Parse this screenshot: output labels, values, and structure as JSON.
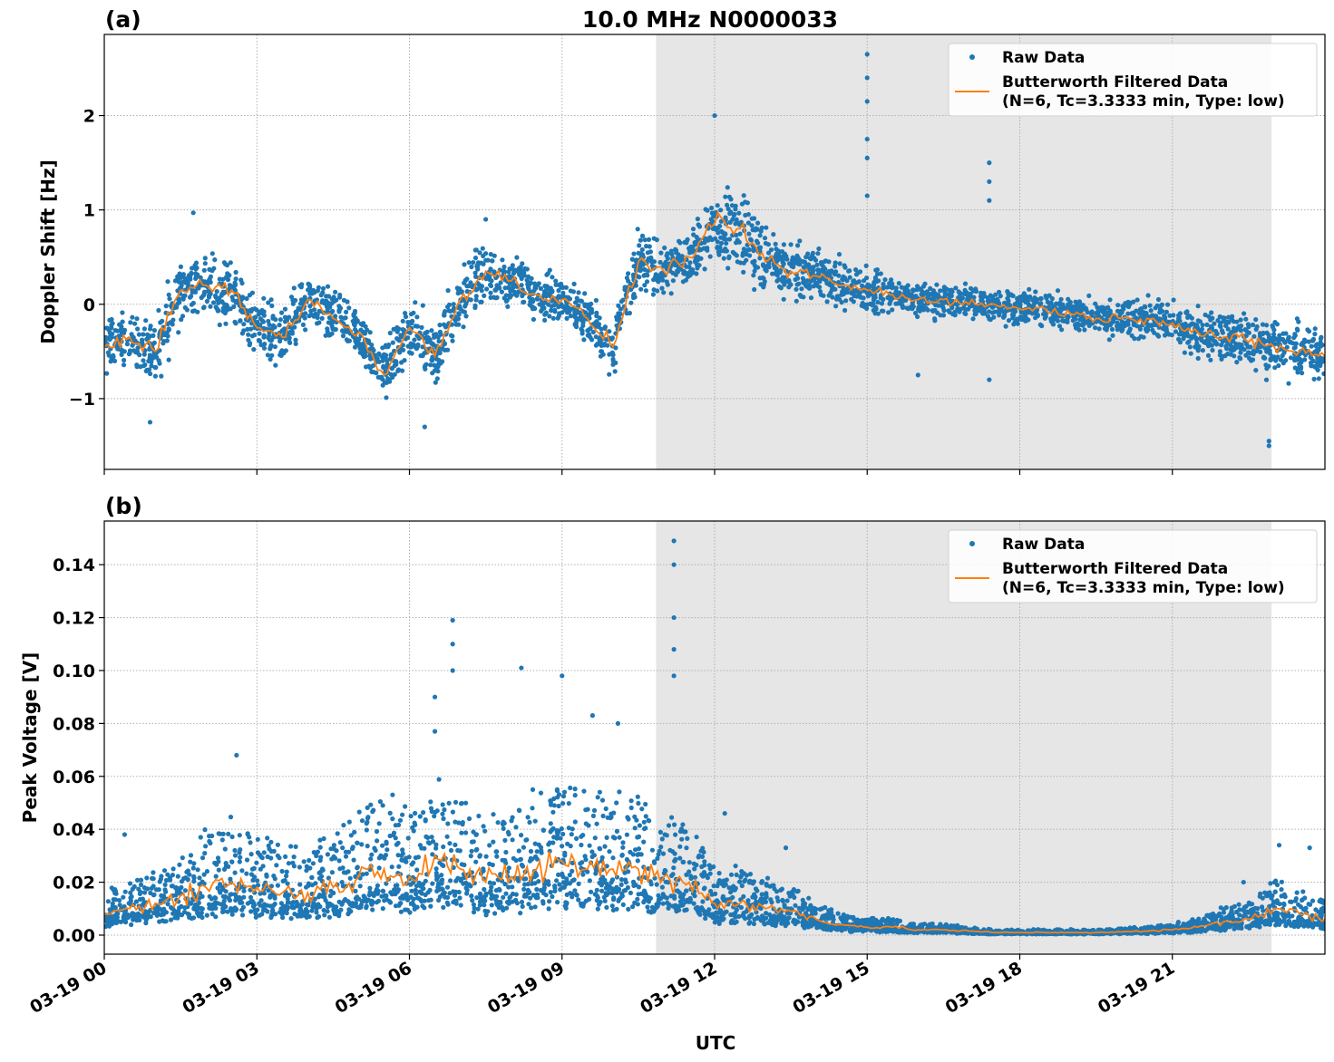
{
  "chart_data": [
    {
      "type": "scatter",
      "panel_label": "(a)",
      "title": "10.0 MHz N0000033",
      "xlabel": "",
      "ylabel": "Doppler Shift [Hz]",
      "x_unit": "hours UTC on 03-19",
      "xlim": [
        0,
        24
      ],
      "ylim": [
        -1.75,
        2.86
      ],
      "yticks": [
        -1,
        0,
        1,
        2
      ],
      "ytick_labels": [
        "−1",
        "0",
        "1",
        "2"
      ],
      "grid": true,
      "shaded_interval": [
        10.85,
        22.95
      ],
      "legend": {
        "placement": "top-right",
        "entries": [
          "Raw Data",
          "Butterworth Filtered Data",
          "(N=6, Tc=3.3333 min, Type: low)"
        ]
      },
      "x": [
        0,
        0.5,
        1,
        1.5,
        2,
        2.5,
        3,
        3.5,
        4,
        4.5,
        5,
        5.5,
        6,
        6.5,
        7,
        7.5,
        8,
        8.5,
        9,
        9.5,
        10,
        10.5,
        11,
        11.5,
        12,
        12.5,
        13,
        13.5,
        14,
        14.5,
        15,
        15.5,
        16,
        16.5,
        17,
        17.5,
        18,
        18.5,
        19,
        19.5,
        20,
        20.5,
        21,
        21.5,
        22,
        22.5,
        23,
        23.5,
        24
      ],
      "series": [
        {
          "name": "Butterworth Filtered Data",
          "color": "#ff7f0e",
          "values": [
            -0.45,
            -0.35,
            -0.5,
            0.15,
            0.2,
            0.15,
            -0.25,
            -0.35,
            0.05,
            -0.15,
            -0.3,
            -0.75,
            -0.25,
            -0.55,
            0.05,
            0.35,
            0.25,
            0.1,
            0.05,
            -0.15,
            -0.45,
            0.45,
            0.35,
            0.5,
            0.85,
            0.8,
            0.45,
            0.35,
            0.3,
            0.2,
            0.15,
            0.1,
            0.05,
            0.05,
            0.0,
            0.0,
            -0.05,
            -0.05,
            -0.1,
            -0.15,
            -0.15,
            -0.15,
            -0.2,
            -0.3,
            -0.35,
            -0.4,
            -0.45,
            -0.5,
            -0.55
          ]
        },
        {
          "name": "Raw Data",
          "color": "#1f77b4",
          "envelope_halfwidth": [
            0.3,
            0.3,
            0.4,
            0.35,
            0.35,
            0.3,
            0.35,
            0.3,
            0.3,
            0.3,
            0.3,
            0.35,
            0.35,
            0.35,
            0.35,
            0.35,
            0.3,
            0.3,
            0.25,
            0.3,
            0.35,
            0.3,
            0.3,
            0.3,
            0.5,
            0.45,
            0.35,
            0.3,
            0.3,
            0.25,
            0.25,
            0.2,
            0.2,
            0.2,
            0.2,
            0.2,
            0.2,
            0.2,
            0.2,
            0.2,
            0.22,
            0.22,
            0.25,
            0.25,
            0.3,
            0.3,
            0.3,
            0.3,
            0.3
          ],
          "outliers": [
            [
              15.0,
              2.65
            ],
            [
              15.0,
              2.4
            ],
            [
              15.0,
              2.15
            ],
            [
              15.0,
              1.75
            ],
            [
              15.0,
              1.55
            ],
            [
              15.0,
              1.15
            ],
            [
              17.4,
              1.5
            ],
            [
              17.4,
              1.3
            ],
            [
              17.4,
              1.1
            ],
            [
              17.4,
              -0.8
            ],
            [
              22.9,
              -1.45
            ],
            [
              22.9,
              -1.5
            ],
            [
              16.0,
              -0.75
            ],
            [
              0.9,
              -1.25
            ],
            [
              6.3,
              -1.3
            ],
            [
              12.0,
              2.0
            ],
            [
              1.75,
              0.97
            ],
            [
              7.5,
              0.9
            ]
          ]
        }
      ]
    },
    {
      "type": "scatter",
      "panel_label": "(b)",
      "xlabel": "UTC",
      "ylabel": "Peak Voltage [V]",
      "x_unit": "hours UTC on 03-19",
      "xlim": [
        0,
        24
      ],
      "ylim": [
        -0.0072,
        0.1565
      ],
      "yticks": [
        0,
        0.02,
        0.04,
        0.06,
        0.08,
        0.1,
        0.12,
        0.14
      ],
      "ytick_labels": [
        "0.00",
        "0.02",
        "0.04",
        "0.06",
        "0.08",
        "0.10",
        "0.12",
        "0.14"
      ],
      "xtick_labels": [
        "03-19 00",
        "03-19 03",
        "03-19 06",
        "03-19 09",
        "03-19 12",
        "03-19 15",
        "03-19 18",
        "03-19 21"
      ],
      "xticks": [
        0,
        3,
        6,
        9,
        12,
        15,
        18,
        21
      ],
      "grid": true,
      "shaded_interval": [
        10.85,
        22.95
      ],
      "legend": {
        "placement": "top-right",
        "entries": [
          "Raw Data",
          "Butterworth Filtered Data",
          "(N=6, Tc=3.3333 min, Type: low)"
        ]
      },
      "x": [
        0,
        0.5,
        1,
        1.5,
        2,
        2.5,
        3,
        3.5,
        4,
        4.5,
        5,
        5.5,
        6,
        6.5,
        7,
        7.5,
        8,
        8.5,
        9,
        9.5,
        10,
        10.5,
        11,
        11.5,
        12,
        12.5,
        13,
        13.5,
        14,
        14.5,
        15,
        15.5,
        16,
        16.5,
        17,
        17.5,
        18,
        18.5,
        19,
        19.5,
        20,
        20.5,
        21,
        21.5,
        22,
        22.5,
        23,
        23.5,
        24
      ],
      "series": [
        {
          "name": "Butterworth Filtered Data",
          "color": "#ff7f0e",
          "values": [
            0.008,
            0.01,
            0.012,
            0.015,
            0.018,
            0.02,
            0.018,
            0.016,
            0.016,
            0.018,
            0.022,
            0.025,
            0.022,
            0.03,
            0.025,
            0.02,
            0.022,
            0.025,
            0.028,
            0.025,
            0.025,
            0.025,
            0.022,
            0.02,
            0.012,
            0.012,
            0.01,
            0.009,
            0.006,
            0.004,
            0.003,
            0.003,
            0.002,
            0.002,
            0.0015,
            0.001,
            0.001,
            0.001,
            0.001,
            0.001,
            0.0012,
            0.0015,
            0.002,
            0.003,
            0.005,
            0.006,
            0.01,
            0.008,
            0.006
          ]
        },
        {
          "name": "Raw Data",
          "color": "#1f77b4",
          "outliers": [
            [
              11.2,
              0.149
            ],
            [
              11.2,
              0.14
            ],
            [
              11.2,
              0.12
            ],
            [
              11.2,
              0.108
            ],
            [
              11.2,
              0.098
            ],
            [
              6.85,
              0.119
            ],
            [
              6.85,
              0.11
            ],
            [
              6.85,
              0.1
            ],
            [
              8.2,
              0.101
            ],
            [
              9.0,
              0.098
            ],
            [
              6.5,
              0.09
            ],
            [
              6.5,
              0.077
            ],
            [
              2.6,
              0.068
            ],
            [
              10.1,
              0.08
            ],
            [
              9.6,
              0.083
            ],
            [
              0.4,
              0.038
            ],
            [
              12.2,
              0.046
            ],
            [
              13.4,
              0.033
            ],
            [
              23.1,
              0.034
            ],
            [
              23.7,
              0.033
            ],
            [
              22.4,
              0.02
            ]
          ]
        }
      ]
    }
  ]
}
